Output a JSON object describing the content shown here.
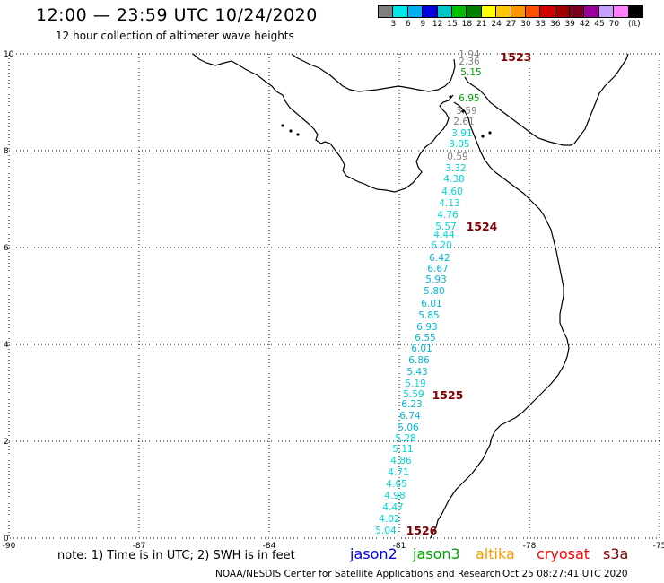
{
  "header": {
    "title": "12:00 — 23:59 UTC 10/24/2020",
    "subtitle": "12 hour collection of altimeter wave heights"
  },
  "colorbar": {
    "colors": [
      "#7f7f7f",
      "#00e5e5",
      "#00b0f0",
      "#0000e0",
      "#00c8c8",
      "#00c000",
      "#008000",
      "#ffff00",
      "#ffc800",
      "#ff9600",
      "#ff5000",
      "#d40000",
      "#a00000",
      "#7a0020",
      "#9c009c",
      "#c8a0ff",
      "#ff80ff",
      "#000000"
    ],
    "labels": [
      "3",
      "6",
      "9",
      "12",
      "15",
      "18",
      "21",
      "24",
      "27",
      "30",
      "33",
      "36",
      "39",
      "42",
      "45",
      "70",
      "(ft)"
    ]
  },
  "map": {
    "lat_labels": [
      "10",
      "8",
      "6",
      "4",
      "2",
      "0"
    ],
    "lon_labels": [
      "-90",
      "-87",
      "-84",
      "-81",
      "-78",
      "-75"
    ],
    "swh_labels": [
      "1.94",
      "2.36",
      "5.15",
      "6.95",
      "3.59",
      "2.61",
      "3.91",
      "3.05",
      "0.59",
      "3.32",
      "4.38",
      "4.60",
      "4.13",
      "4.76",
      "5.57",
      "4.44",
      "6.20",
      "6.42",
      "6.67",
      "5.93",
      "5.80",
      "6.01",
      "5.85",
      "6.93",
      "6.55",
      "6.01",
      "6.86",
      "5.43",
      "5.19",
      "5.59",
      "6.23",
      "6.74",
      "5.06",
      "5.28",
      "5.11",
      "4.86",
      "4.71",
      "4.65",
      "4.98",
      "4.47",
      "4.02",
      "5.04"
    ],
    "time_labels": [
      "1523",
      "1524",
      "1525",
      "1526"
    ]
  },
  "footer": {
    "note": "note: 1) Time is in UTC; 2) SWH is in feet",
    "satellites": [
      {
        "name": "jason2",
        "color": "#0000ff"
      },
      {
        "name": "jason3",
        "color": "#00a000"
      },
      {
        "name": "altika",
        "color": "#ff9900"
      },
      {
        "name": "cryosat",
        "color": "#ff0000"
      },
      {
        "name": "s3a",
        "color": "#800000"
      }
    ],
    "credit": "NOAA/NESDIS Center for Satellite Applications and Research",
    "timestamp": "Oct 25 08:27:41 UTC 2020"
  }
}
